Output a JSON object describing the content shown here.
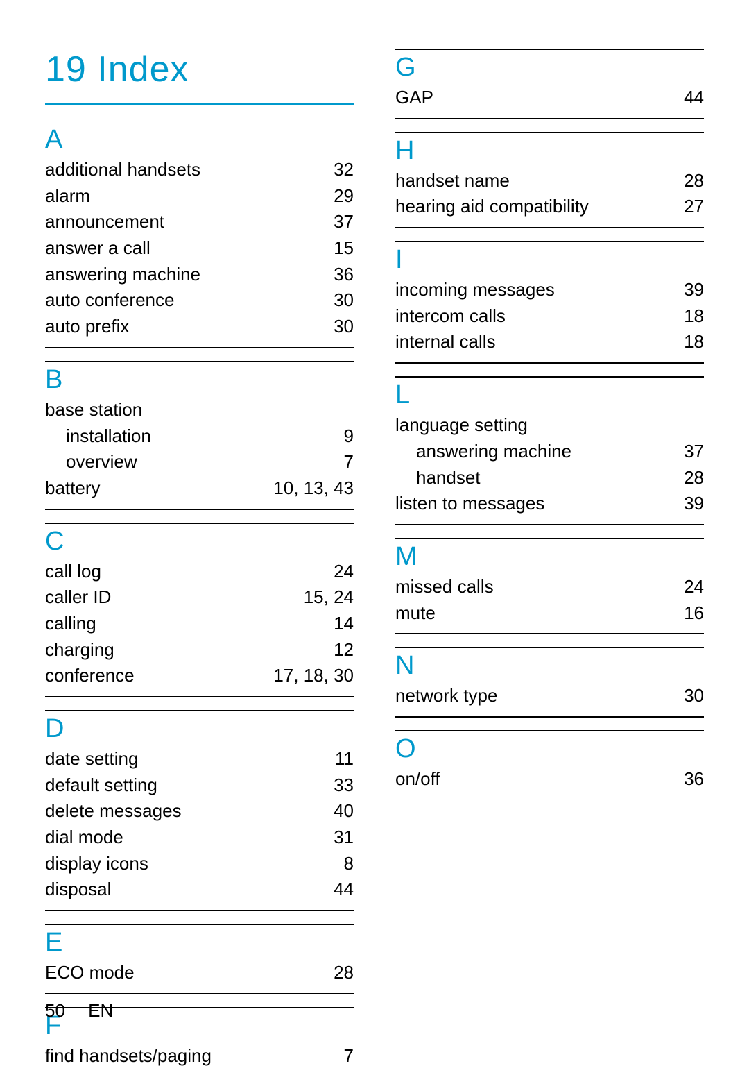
{
  "title": "19  Index",
  "colors": {
    "accent": "#0099cc",
    "text": "#000000",
    "rule_heavy": "#000000",
    "rule_light": "#000000",
    "background": "#ffffff"
  },
  "footer": {
    "page_number": "50",
    "language": "EN"
  },
  "left_column": [
    {
      "letter": "A",
      "top_rule": false,
      "entries": [
        {
          "term": "additional handsets",
          "page": "32"
        },
        {
          "term": "alarm",
          "page": "29"
        },
        {
          "term": "announcement",
          "page": "37"
        },
        {
          "term": "answer a call",
          "page": "15"
        },
        {
          "term": "answering machine",
          "page": "36"
        },
        {
          "term": "auto conference",
          "page": "30"
        },
        {
          "term": "auto prefix",
          "page": "30"
        }
      ]
    },
    {
      "letter": "B",
      "top_rule": true,
      "entries": [
        {
          "term": "base station",
          "page": ""
        },
        {
          "term": "installation",
          "page": "9",
          "sub": true
        },
        {
          "term": "overview",
          "page": "7",
          "sub": true
        },
        {
          "term": "battery",
          "page": "10, 13, 43"
        }
      ]
    },
    {
      "letter": "C",
      "top_rule": true,
      "entries": [
        {
          "term": "call log",
          "page": "24"
        },
        {
          "term": "caller ID",
          "page": "15, 24"
        },
        {
          "term": "calling",
          "page": "14"
        },
        {
          "term": "charging",
          "page": "12"
        },
        {
          "term": "conference",
          "page": "17, 18, 30"
        }
      ]
    },
    {
      "letter": "D",
      "top_rule": true,
      "entries": [
        {
          "term": "date setting",
          "page": "11"
        },
        {
          "term": "default setting",
          "page": "33"
        },
        {
          "term": "delete messages",
          "page": "40"
        },
        {
          "term": "dial mode",
          "page": "31"
        },
        {
          "term": "display icons",
          "page": "8"
        },
        {
          "term": "disposal",
          "page": "44"
        }
      ]
    },
    {
      "letter": "E",
      "top_rule": true,
      "entries": [
        {
          "term": "ECO mode",
          "page": "28"
        }
      ]
    },
    {
      "letter": "F",
      "top_rule": true,
      "entries": [
        {
          "term": "find handsets/paging",
          "page": "7"
        }
      ],
      "no_bottom_rule": true
    }
  ],
  "right_column": [
    {
      "letter": "G",
      "top_rule": true,
      "entries": [
        {
          "term": "GAP",
          "page": "44"
        }
      ]
    },
    {
      "letter": "H",
      "top_rule": true,
      "entries": [
        {
          "term": "handset name",
          "page": "28"
        },
        {
          "term": "hearing aid compatibility",
          "page": "27"
        }
      ]
    },
    {
      "letter": "I",
      "top_rule": true,
      "entries": [
        {
          "term": "incoming messages",
          "page": "39"
        },
        {
          "term": "intercom calls",
          "page": "18"
        },
        {
          "term": "internal calls",
          "page": "18"
        }
      ]
    },
    {
      "letter": "L",
      "top_rule": true,
      "entries": [
        {
          "term": "language setting",
          "page": ""
        },
        {
          "term": "answering machine",
          "page": "37",
          "sub": true
        },
        {
          "term": "handset",
          "page": "28",
          "sub": true
        },
        {
          "term": "listen to messages",
          "page": "39"
        }
      ]
    },
    {
      "letter": "M",
      "top_rule": true,
      "entries": [
        {
          "term": "missed calls",
          "page": "24"
        },
        {
          "term": "mute",
          "page": "16"
        }
      ]
    },
    {
      "letter": "N",
      "top_rule": true,
      "entries": [
        {
          "term": "network type",
          "page": "30"
        }
      ]
    },
    {
      "letter": "O",
      "top_rule": true,
      "entries": [
        {
          "term": "on/off",
          "page": "36"
        }
      ],
      "no_bottom_rule": true
    }
  ]
}
